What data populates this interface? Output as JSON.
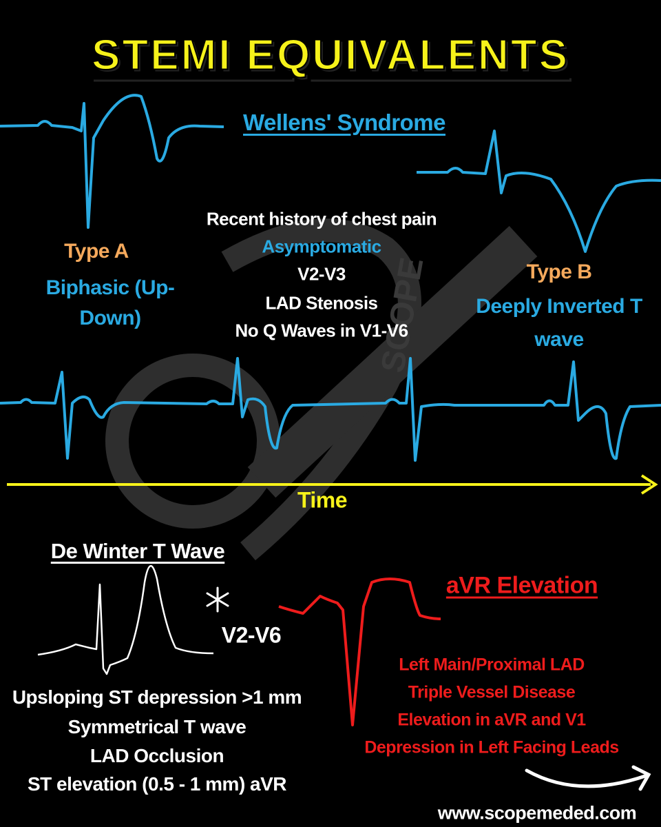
{
  "title": "STEMI EQUIVALENTS",
  "watermark": "SCOPE",
  "wellens": {
    "heading": "Wellens' Syndrome",
    "points": [
      "Recent history of chest pain",
      "Asymptomatic",
      "V2-V3",
      "LAD Stenosis",
      "No Q Waves in V1-V6"
    ],
    "type_a": {
      "label": "Type A",
      "description": "Biphasic (Up-Down)"
    },
    "type_b": {
      "label": "Type B",
      "description": "Deeply Inverted T wave"
    }
  },
  "axis_label": "Time",
  "de_winter": {
    "heading": "De Winter T Wave",
    "leads": "V2-V6",
    "points": [
      "Upsloping ST depression >1 mm",
      "Symmetrical T wave",
      "LAD Occlusion",
      "ST elevation (0.5 - 1 mm) aVR"
    ]
  },
  "avr": {
    "heading": "aVR Elevation",
    "points": [
      "Left Main/Proximal LAD",
      "Triple Vessel Disease",
      "Elevation in aVR and V1",
      "Depression in Left Facing Leads"
    ]
  },
  "website": "www.scopemeded.com"
}
